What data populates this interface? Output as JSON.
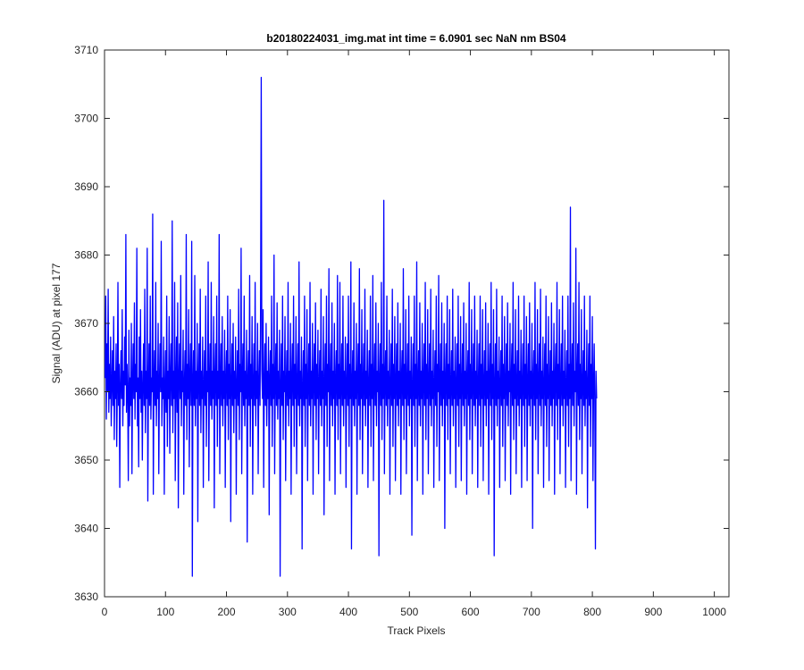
{
  "chart_data": {
    "type": "line",
    "title": "b20180224031_img.mat int time = 6.0901 sec  NaN nm BS04",
    "xlabel": "Track Pixels",
    "ylabel": "Signal (ADU) at pixel 177",
    "xlim": [
      0,
      1024
    ],
    "ylim": [
      3630,
      3710
    ],
    "xticks": [
      0,
      100,
      200,
      300,
      400,
      500,
      600,
      700,
      800,
      900,
      1000
    ],
    "yticks": [
      3630,
      3640,
      3650,
      3660,
      3670,
      3680,
      3690,
      3700,
      3710
    ],
    "grid": false,
    "series": [
      {
        "color": "#0000ff",
        "x_start": 1,
        "x_step": 1,
        "values": [
          3662,
          3674,
          3656,
          3667,
          3660,
          3675,
          3657,
          3664,
          3659,
          3668,
          3655,
          3661,
          3666,
          3658,
          3671,
          3653,
          3663,
          3659,
          3667,
          3652,
          3660,
          3676,
          3658,
          3664,
          3646,
          3661,
          3666,
          3659,
          3672,
          3655,
          3663,
          3658,
          3668,
          3661,
          3683,
          3657,
          3664,
          3660,
          3647,
          3669,
          3655,
          3662,
          3658,
          3670,
          3648,
          3661,
          3667,
          3659,
          3673,
          3656,
          3664,
          3660,
          3681,
          3655,
          3662,
          3649,
          3668,
          3659,
          3672,
          3657,
          3663,
          3650,
          3661,
          3667,
          3658,
          3675,
          3654,
          3663,
          3659,
          3681,
          3644,
          3660,
          3667,
          3658,
          3674,
          3656,
          3662,
          3660,
          3686,
          3645,
          3661,
          3666,
          3658,
          3676,
          3655,
          3663,
          3659,
          3670,
          3648,
          3661,
          3667,
          3660,
          3682,
          3655,
          3662,
          3659,
          3668,
          3645,
          3661,
          3666,
          3657,
          3674,
          3652,
          3663,
          3659,
          3671,
          3651,
          3662,
          3667,
          3658,
          3685,
          3654,
          3663,
          3659,
          3676,
          3647,
          3661,
          3668,
          3657,
          3673,
          3643,
          3662,
          3667,
          3659,
          3677,
          3655,
          3663,
          3660,
          3669,
          3645,
          3661,
          3666,
          3658,
          3683,
          3653,
          3664,
          3659,
          3672,
          3649,
          3662,
          3667,
          3658,
          3682,
          3633,
          3661,
          3666,
          3658,
          3677,
          3655,
          3663,
          3659,
          3670,
          3641,
          3662,
          3667,
          3658,
          3675,
          3654,
          3663,
          3659,
          3668,
          3646,
          3661,
          3666,
          3658,
          3674,
          3652,
          3663,
          3660,
          3679,
          3647,
          3661,
          3667,
          3658,
          3676,
          3656,
          3663,
          3659,
          3671,
          3643,
          3662,
          3667,
          3658,
          3674,
          3652,
          3663,
          3659,
          3683,
          3648,
          3661,
          3667,
          3658,
          3671,
          3655,
          3663,
          3659,
          3669,
          3646,
          3662,
          3666,
          3658,
          3674,
          3653,
          3664,
          3659,
          3672,
          3641,
          3661,
          3667,
          3658,
          3670,
          3654,
          3663,
          3659,
          3668,
          3645,
          3661,
          3666,
          3658,
          3675,
          3653,
          3664,
          3660,
          3681,
          3648,
          3661,
          3667,
          3658,
          3674,
          3655,
          3663,
          3659,
          3669,
          3638,
          3662,
          3666,
          3658,
          3677,
          3652,
          3664,
          3659,
          3671,
          3645,
          3661,
          3667,
          3658,
          3676,
          3655,
          3663,
          3659,
          3670,
          3648,
          3661,
          3666,
          3658,
          3674,
          3706,
          3663,
          3659,
          3672,
          3646,
          3661,
          3667,
          3658,
          3670,
          3655,
          3663,
          3659,
          3668,
          3642,
          3662,
          3666,
          3658,
          3674,
          3652,
          3664,
          3659,
          3680,
          3648,
          3661,
          3667,
          3658,
          3673,
          3656,
          3663,
          3659,
          3669,
          3633,
          3661,
          3667,
          3658,
          3674,
          3653,
          3663,
          3660,
          3671,
          3647,
          3661,
          3666,
          3658,
          3676,
          3655,
          3663,
          3659,
          3670,
          3645,
          3662,
          3667,
          3658,
          3674,
          3652,
          3664,
          3659,
          3671,
          3648,
          3661,
          3667,
          3658,
          3679,
          3655,
          3663,
          3659,
          3668,
          3637,
          3661,
          3666,
          3658,
          3674,
          3652,
          3664,
          3659,
          3672,
          3647,
          3661,
          3667,
          3658,
          3676,
          3655,
          3663,
          3659,
          3670,
          3645,
          3662,
          3667,
          3658,
          3673,
          3653,
          3664,
          3659,
          3669,
          3648,
          3661,
          3666,
          3658,
          3675,
          3655,
          3663,
          3659,
          3671,
          3642,
          3661,
          3667,
          3658,
          3674,
          3652,
          3664,
          3660,
          3678,
          3647,
          3661,
          3667,
          3658,
          3673,
          3655,
          3663,
          3659,
          3670,
          3645,
          3662,
          3666,
          3658,
          3677,
          3653,
          3664,
          3659,
          3676,
          3648,
          3661,
          3667,
          3658,
          3674,
          3655,
          3663,
          3659,
          3668,
          3646,
          3661,
          3667,
          3658,
          3674,
          3652,
          3664,
          3659,
          3679,
          3637,
          3661,
          3666,
          3658,
          3673,
          3655,
          3663,
          3659,
          3670,
          3645,
          3662,
          3667,
          3658,
          3678,
          3653,
          3664,
          3659,
          3672,
          3648,
          3661,
          3667,
          3658,
          3675,
          3655,
          3663,
          3659,
          3669,
          3646,
          3661,
          3666,
          3658,
          3674,
          3652,
          3664,
          3659,
          3677,
          3647,
          3661,
          3667,
          3658,
          3673,
          3655,
          3663,
          3660,
          3670,
          3636,
          3662,
          3667,
          3658,
          3676,
          3653,
          3664,
          3659,
          3688,
          3648,
          3661,
          3666,
          3658,
          3674,
          3655,
          3663,
          3659,
          3669,
          3645,
          3661,
          3667,
          3658,
          3675,
          3652,
          3664,
          3659,
          3671,
          3647,
          3661,
          3667,
          3658,
          3673,
          3655,
          3663,
          3659,
          3670,
          3645,
          3662,
          3666,
          3658,
          3678,
          3653,
          3664,
          3659,
          3672,
          3648,
          3661,
          3667,
          3658,
          3674,
          3655,
          3663,
          3659,
          3668,
          3639,
          3661,
          3667,
          3658,
          3674,
          3652,
          3664,
          3659,
          3679,
          3647,
          3661,
          3666,
          3658,
          3673,
          3655,
          3663,
          3659,
          3670,
          3645,
          3662,
          3667,
          3658,
          3676,
          3653,
          3664,
          3659,
          3672,
          3648,
          3661,
          3667,
          3658,
          3675,
          3655,
          3663,
          3659,
          3669,
          3646,
          3661,
          3666,
          3658,
          3674,
          3652,
          3664,
          3660,
          3677,
          3647,
          3661,
          3667,
          3658,
          3673,
          3655,
          3663,
          3659,
          3670,
          3640,
          3662,
          3667,
          3658,
          3674,
          3653,
          3664,
          3659,
          3672,
          3648,
          3661,
          3666,
          3658,
          3675,
          3655,
          3663,
          3659,
          3668,
          3646,
          3661,
          3667,
          3658,
          3674,
          3652,
          3664,
          3659,
          3671,
          3647,
          3661,
          3667,
          3658,
          3673,
          3655,
          3663,
          3659,
          3670,
          3645,
          3662,
          3666,
          3658,
          3676,
          3653,
          3664,
          3659,
          3672,
          3648,
          3661,
          3667,
          3658,
          3674,
          3655,
          3663,
          3659,
          3669,
          3646,
          3661,
          3667,
          3658,
          3674,
          3652,
          3664,
          3659,
          3672,
          3647,
          3661,
          3666,
          3658,
          3673,
          3655,
          3663,
          3659,
          3670,
          3645,
          3662,
          3667,
          3658,
          3676,
          3653,
          3664,
          3659,
          3672,
          3636,
          3661,
          3667,
          3658,
          3675,
          3655,
          3663,
          3659,
          3668,
          3646,
          3661,
          3666,
          3658,
          3674,
          3652,
          3664,
          3659,
          3671,
          3647,
          3661,
          3667,
          3658,
          3673,
          3655,
          3663,
          3660,
          3670,
          3645,
          3662,
          3667,
          3658,
          3676,
          3653,
          3664,
          3659,
          3672,
          3648,
          3661,
          3666,
          3658,
          3674,
          3655,
          3663,
          3659,
          3669,
          3646,
          3661,
          3667,
          3658,
          3674,
          3652,
          3664,
          3659,
          3671,
          3647,
          3661,
          3667,
          3658,
          3673,
          3655,
          3663,
          3659,
          3670,
          3640,
          3662,
          3666,
          3658,
          3676,
          3653,
          3664,
          3659,
          3672,
          3648,
          3661,
          3667,
          3658,
          3675,
          3655,
          3663,
          3659,
          3668,
          3646,
          3661,
          3667,
          3658,
          3674,
          3652,
          3664,
          3659,
          3671,
          3647,
          3661,
          3666,
          3658,
          3673,
          3655,
          3663,
          3659,
          3670,
          3645,
          3662,
          3667,
          3658,
          3676,
          3653,
          3664,
          3659,
          3672,
          3648,
          3661,
          3667,
          3658,
          3674,
          3655,
          3663,
          3659,
          3669,
          3646,
          3661,
          3666,
          3658,
          3674,
          3652,
          3664,
          3659,
          3687,
          3647,
          3661,
          3667,
          3658,
          3673,
          3655,
          3663,
          3660,
          3681,
          3645,
          3662,
          3667,
          3658,
          3676,
          3653,
          3664,
          3659,
          3672,
          3648,
          3661,
          3666,
          3658,
          3674,
          3655,
          3663,
          3659,
          3669,
          3643,
          3661,
          3667,
          3658,
          3674,
          3652,
          3664,
          3659,
          3671,
          3647,
          3661,
          3667,
          3658,
          3637,
          3663,
          3659
        ]
      }
    ]
  }
}
